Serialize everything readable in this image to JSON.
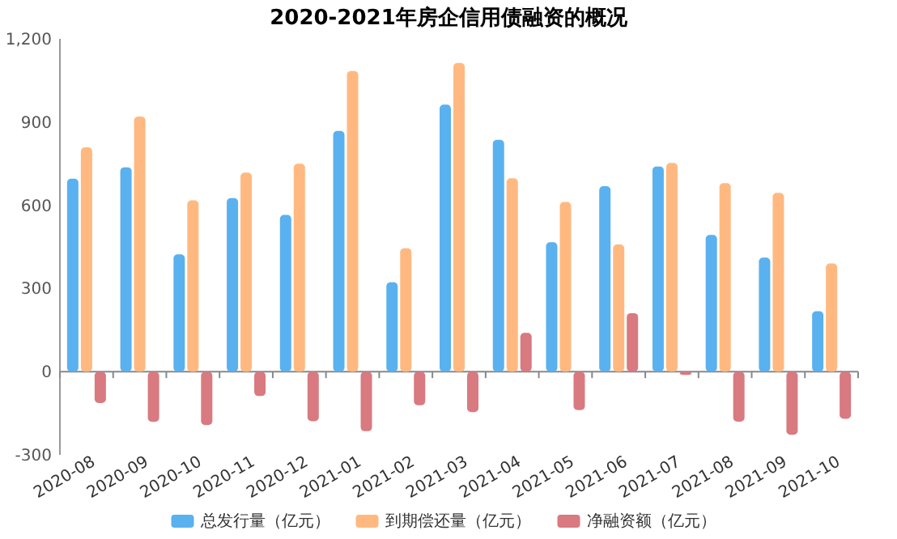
{
  "chart_data": {
    "type": "bar",
    "title": "2020-2021年房企信用债融资的概况",
    "categories": [
      "2020-08",
      "2020-09",
      "2020-10",
      "2020-11",
      "2020-12",
      "2021-01",
      "2021-02",
      "2021-03",
      "2021-04",
      "2021-05",
      "2021-06",
      "2021-07",
      "2021-08",
      "2021-09",
      "2021-10"
    ],
    "series": [
      {
        "name": "总发行量（亿元）",
        "color": "#5ab1ef",
        "values": [
          696,
          737,
          423,
          626,
          565,
          868,
          322,
          963,
          836,
          467,
          669,
          740,
          493,
          411,
          218
        ]
      },
      {
        "name": "到期偿还量（亿元）",
        "color": "#ffb980",
        "values": [
          809,
          920,
          618,
          718,
          750,
          1084,
          445,
          1113,
          697,
          612,
          459,
          753,
          680,
          645,
          390
        ]
      },
      {
        "name": "净融资额（亿元）",
        "color": "#d87a80",
        "values": [
          -113,
          -181,
          -193,
          -88,
          -179,
          -215,
          -121,
          -146,
          140,
          -139,
          211,
          -12,
          -180,
          -228,
          -170
        ]
      }
    ],
    "ylim": [
      -300,
      1200
    ],
    "yticks": [
      -300,
      0,
      300,
      600,
      900,
      {
        "value": 1200,
        "label": "1,200"
      }
    ],
    "legend": "bottom"
  }
}
